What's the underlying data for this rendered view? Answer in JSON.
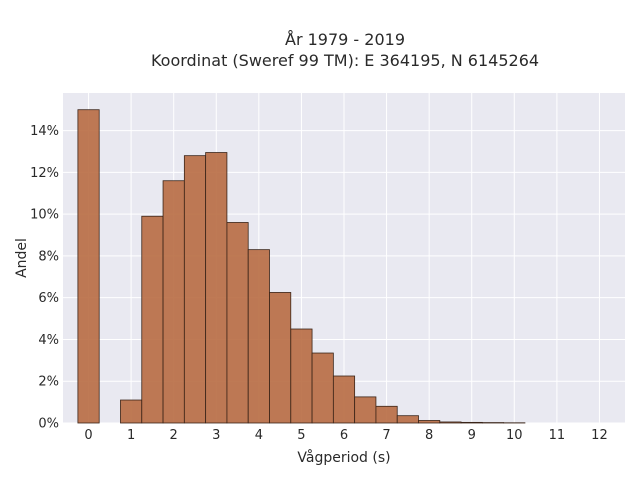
{
  "chart_data": {
    "type": "bar",
    "title_lines": [
      "År 1979 - 2019",
      "Koordinat (Sweref 99 TM): E 364195, N 6145264"
    ],
    "xlabel": "Vågperiod (s)",
    "ylabel": "Andel",
    "xlim": [
      -0.6,
      12.6
    ],
    "ylim": [
      0,
      15.8
    ],
    "x_ticks": [
      0,
      1,
      2,
      3,
      4,
      5,
      6,
      7,
      8,
      9,
      10,
      11,
      12
    ],
    "y_ticks": [
      0,
      2,
      4,
      6,
      8,
      10,
      12,
      14
    ],
    "y_tick_labels": [
      "0%",
      "2%",
      "4%",
      "6%",
      "8%",
      "10%",
      "12%",
      "14%"
    ],
    "bin_width": 0.5,
    "bins": [
      {
        "x": 0.0,
        "value": 15.0
      },
      {
        "x": 1.0,
        "value": 1.1
      },
      {
        "x": 1.5,
        "value": 9.9
      },
      {
        "x": 2.0,
        "value": 11.6
      },
      {
        "x": 2.5,
        "value": 12.8
      },
      {
        "x": 3.0,
        "value": 12.95
      },
      {
        "x": 3.5,
        "value": 9.6
      },
      {
        "x": 4.0,
        "value": 8.3
      },
      {
        "x": 4.5,
        "value": 6.25
      },
      {
        "x": 5.0,
        "value": 4.5
      },
      {
        "x": 5.5,
        "value": 3.35
      },
      {
        "x": 6.0,
        "value": 2.25
      },
      {
        "x": 6.5,
        "value": 1.25
      },
      {
        "x": 7.0,
        "value": 0.8
      },
      {
        "x": 7.5,
        "value": 0.35
      },
      {
        "x": 8.0,
        "value": 0.12
      },
      {
        "x": 8.5,
        "value": 0.05
      },
      {
        "x": 9.0,
        "value": 0.03
      },
      {
        "x": 9.5,
        "value": 0.02
      },
      {
        "x": 10.0,
        "value": 0.01
      }
    ],
    "grid": true,
    "colors": {
      "bar": "#b86b43",
      "bar_edge": "#3a2418",
      "plot_bg": "#e9e9f1",
      "grid": "#ffffff"
    }
  }
}
